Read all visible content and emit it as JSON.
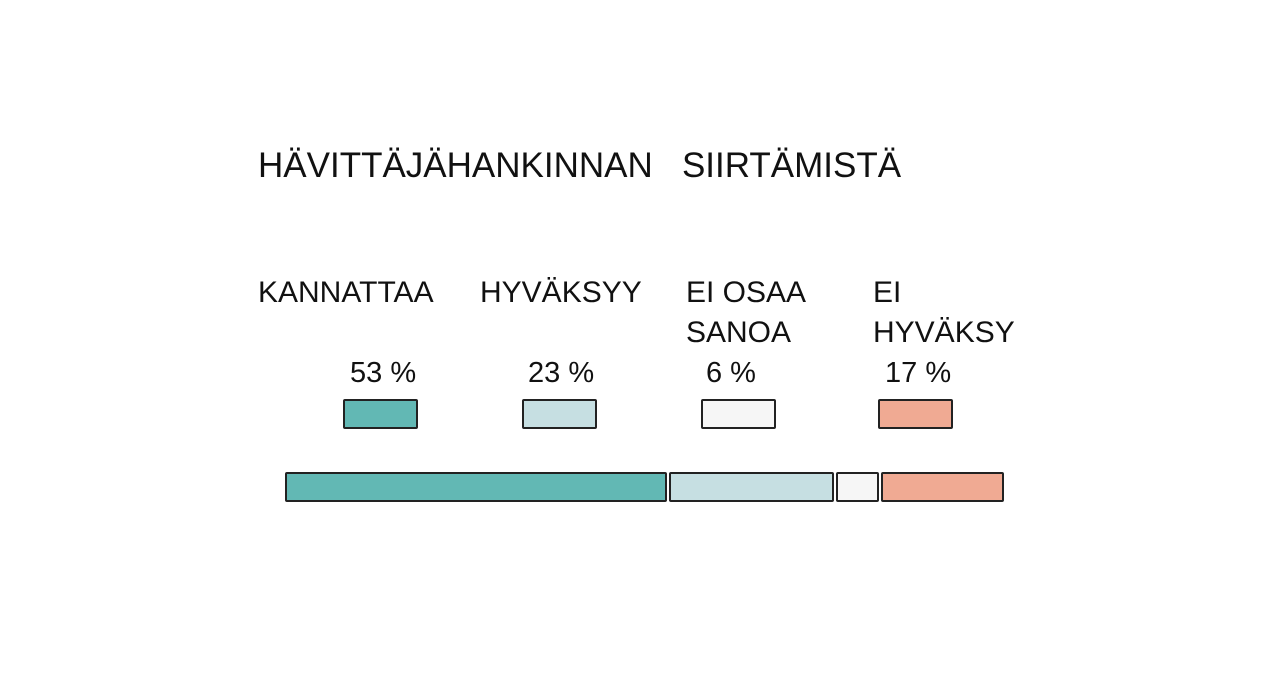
{
  "chart_data": {
    "type": "stacked_bar",
    "title": "HÄVITTÄJÄHANKINNAN   SIIRTÄMISTÄ",
    "series": [
      {
        "name": "KANNATTAA",
        "color": "#62b8b4",
        "values": [
          53
        ],
        "value_labels": [
          "53 %"
        ]
      },
      {
        "name": "HYVÄKSYY",
        "color": "#c6dfe2",
        "values": [
          23
        ],
        "value_labels": [
          "23 %"
        ]
      },
      {
        "name": "EI OSAA SANOA",
        "color": "#f6f6f6",
        "values": [
          6
        ],
        "value_labels": [
          "6 %"
        ]
      },
      {
        "name": "EI HYVÄKSY",
        "color": "#f0aa93",
        "values": [
          17
        ],
        "value_labels": [
          "17 %"
        ]
      }
    ]
  }
}
